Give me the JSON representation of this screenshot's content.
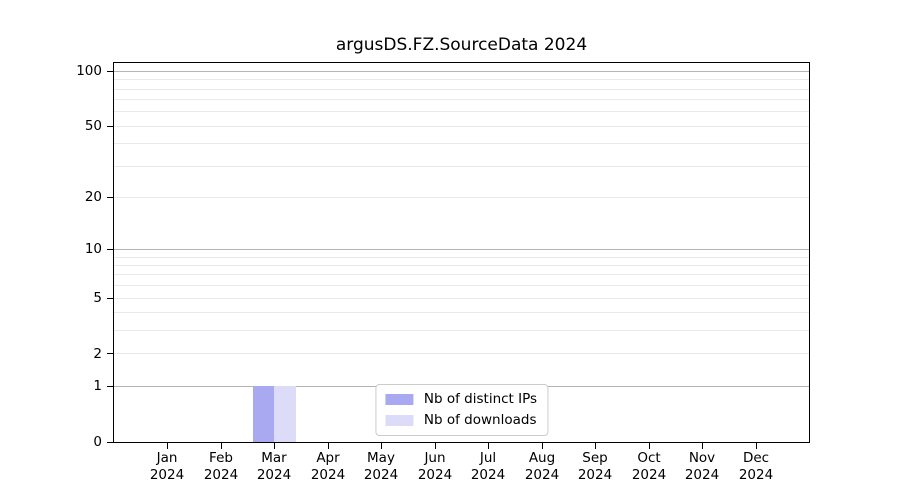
{
  "chart_data": {
    "type": "bar",
    "title": "argusDS.FZ.SourceData 2024",
    "year_label": "2024",
    "categories": [
      "Jan",
      "Feb",
      "Mar",
      "Apr",
      "May",
      "Jun",
      "Jul",
      "Aug",
      "Sep",
      "Oct",
      "Nov",
      "Dec"
    ],
    "series": [
      {
        "name": "Nb of distinct IPs",
        "color": "#a9a9f2",
        "values": [
          0,
          0,
          1,
          0,
          0,
          0,
          0,
          0,
          0,
          0,
          0,
          0
        ]
      },
      {
        "name": "Nb of downloads",
        "color": "#dcdcf9",
        "values": [
          0,
          0,
          1,
          0,
          0,
          0,
          0,
          0,
          0,
          0,
          0,
          0
        ]
      }
    ],
    "yscale": "log1p",
    "ylim": [
      0,
      111
    ],
    "xlabel": "",
    "ylabel": "",
    "y_ticks": [
      {
        "value": 0,
        "label": "0"
      },
      {
        "value": 1,
        "label": "1"
      },
      {
        "value": 2,
        "label": "2"
      },
      {
        "value": 5,
        "label": "5"
      },
      {
        "value": 10,
        "label": "10"
      },
      {
        "value": 20,
        "label": "20"
      },
      {
        "value": 50,
        "label": "50"
      },
      {
        "value": 100,
        "label": "100"
      }
    ],
    "y_major_gridlines": [
      1,
      10,
      100
    ],
    "y_minor_gridlines": [
      2,
      3,
      4,
      5,
      6,
      7,
      8,
      9,
      20,
      30,
      40,
      50,
      60,
      70,
      80,
      90
    ],
    "grid": true,
    "legend_position": "lower center",
    "colors": {
      "grid_major": "#b5b5b5",
      "grid_minor": "#e9e9e9",
      "spine": "#000000",
      "background": "#ffffff"
    }
  }
}
